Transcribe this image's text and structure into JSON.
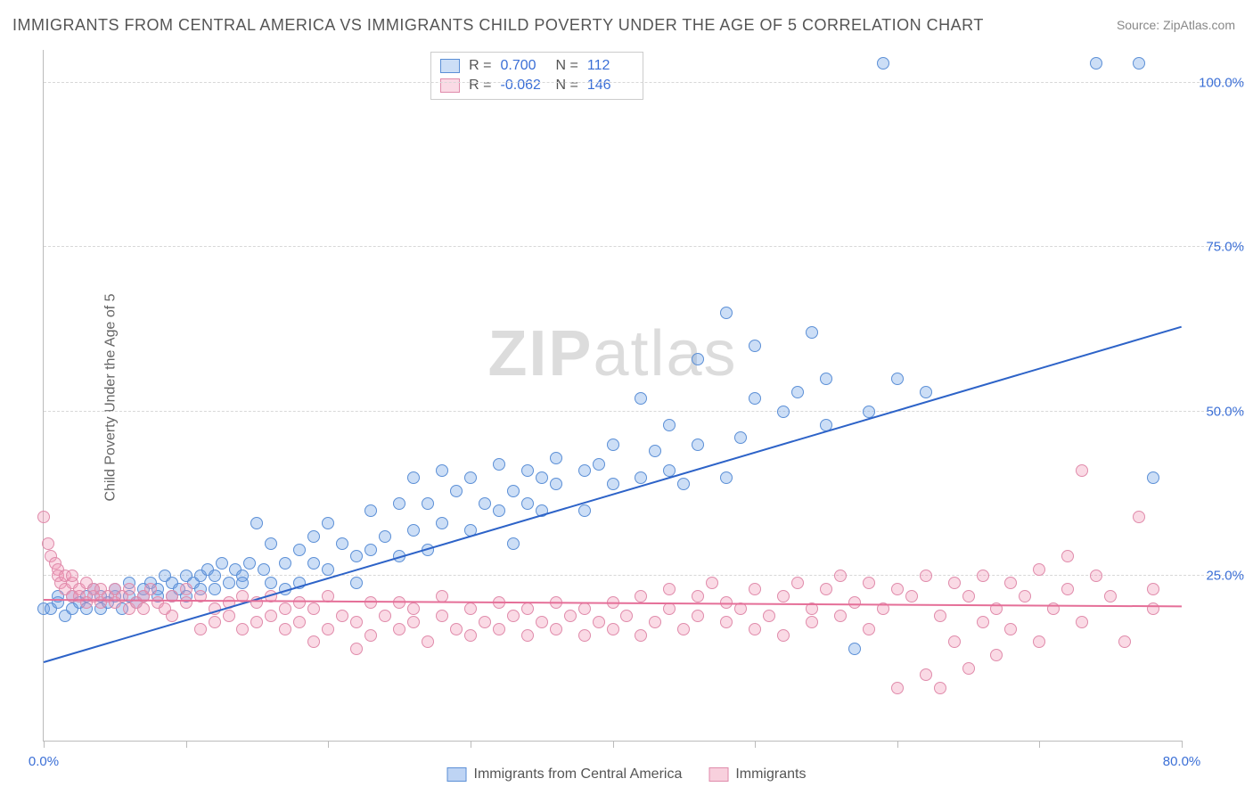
{
  "title": "IMMIGRANTS FROM CENTRAL AMERICA VS IMMIGRANTS CHILD POVERTY UNDER THE AGE OF 5 CORRELATION CHART",
  "source": "Source: ZipAtlas.com",
  "ylabel": "Child Poverty Under the Age of 5",
  "watermark_bold": "ZIP",
  "watermark_rest": "atlas",
  "chart": {
    "type": "scatter",
    "background_color": "#ffffff",
    "grid_color": "#d8d8d8",
    "axis_color": "#bbbbbb",
    "label_color": "#3b6fd6",
    "xlim": [
      0,
      80
    ],
    "ylim": [
      0,
      105
    ],
    "yticks": [
      25,
      50,
      75,
      100
    ],
    "ytick_labels": [
      "25.0%",
      "50.0%",
      "75.0%",
      "100.0%"
    ],
    "xticks": [
      0,
      10,
      20,
      30,
      40,
      50,
      60,
      70,
      80
    ],
    "xtick_labels": {
      "0": "0.0%",
      "80": "80.0%"
    },
    "marker_radius": 7,
    "marker_border_width": 1.5,
    "trend_line_width": 2
  },
  "series": [
    {
      "name": "Immigrants from Central America",
      "fill": "rgba(110,160,230,0.35)",
      "stroke": "#5b8fd6",
      "trend_color": "#2d63c8",
      "R": "0.700",
      "N": "112",
      "trend": {
        "x1": 0,
        "y1": 12,
        "x2": 80,
        "y2": 63
      },
      "points": [
        [
          0,
          20
        ],
        [
          0.5,
          20
        ],
        [
          1,
          21
        ],
        [
          1,
          22
        ],
        [
          1.5,
          19
        ],
        [
          2,
          20
        ],
        [
          2,
          22
        ],
        [
          2.5,
          21
        ],
        [
          3,
          20
        ],
        [
          3,
          22
        ],
        [
          3.5,
          23
        ],
        [
          4,
          20
        ],
        [
          4,
          22
        ],
        [
          4.5,
          21
        ],
        [
          5,
          22
        ],
        [
          5,
          23
        ],
        [
          5.5,
          20
        ],
        [
          6,
          22
        ],
        [
          6,
          24
        ],
        [
          6.5,
          21
        ],
        [
          7,
          23
        ],
        [
          7,
          22
        ],
        [
          7.5,
          24
        ],
        [
          8,
          22
        ],
        [
          8,
          23
        ],
        [
          8.5,
          25
        ],
        [
          9,
          22
        ],
        [
          9,
          24
        ],
        [
          9.5,
          23
        ],
        [
          10,
          22
        ],
        [
          10,
          25
        ],
        [
          10.5,
          24
        ],
        [
          11,
          23
        ],
        [
          11,
          25
        ],
        [
          11.5,
          26
        ],
        [
          12,
          23
        ],
        [
          12,
          25
        ],
        [
          12.5,
          27
        ],
        [
          13,
          24
        ],
        [
          13.5,
          26
        ],
        [
          14,
          25
        ],
        [
          14,
          24
        ],
        [
          14.5,
          27
        ],
        [
          15,
          33
        ],
        [
          15.5,
          26
        ],
        [
          16,
          24
        ],
        [
          16,
          30
        ],
        [
          17,
          23
        ],
        [
          17,
          27
        ],
        [
          18,
          29
        ],
        [
          18,
          24
        ],
        [
          19,
          31
        ],
        [
          19,
          27
        ],
        [
          20,
          26
        ],
        [
          20,
          33
        ],
        [
          21,
          30
        ],
        [
          22,
          28
        ],
        [
          22,
          24
        ],
        [
          23,
          35
        ],
        [
          23,
          29
        ],
        [
          24,
          31
        ],
        [
          25,
          36
        ],
        [
          25,
          28
        ],
        [
          26,
          40
        ],
        [
          26,
          32
        ],
        [
          27,
          29
        ],
        [
          27,
          36
        ],
        [
          28,
          33
        ],
        [
          28,
          41
        ],
        [
          29,
          38
        ],
        [
          30,
          32
        ],
        [
          30,
          40
        ],
        [
          31,
          36
        ],
        [
          32,
          35
        ],
        [
          32,
          42
        ],
        [
          33,
          30
        ],
        [
          33,
          38
        ],
        [
          34,
          41
        ],
        [
          34,
          36
        ],
        [
          35,
          40
        ],
        [
          35,
          35
        ],
        [
          36,
          39
        ],
        [
          36,
          43
        ],
        [
          38,
          35
        ],
        [
          38,
          41
        ],
        [
          39,
          42
        ],
        [
          40,
          45
        ],
        [
          40,
          39
        ],
        [
          42,
          40
        ],
        [
          42,
          52
        ],
        [
          43,
          44
        ],
        [
          44,
          41
        ],
        [
          44,
          48
        ],
        [
          45,
          39
        ],
        [
          46,
          58
        ],
        [
          46,
          45
        ],
        [
          48,
          65
        ],
        [
          48,
          40
        ],
        [
          49,
          46
        ],
        [
          50,
          60
        ],
        [
          50,
          52
        ],
        [
          52,
          50
        ],
        [
          53,
          53
        ],
        [
          54,
          62
        ],
        [
          55,
          48
        ],
        [
          55,
          55
        ],
        [
          57,
          14
        ],
        [
          58,
          50
        ],
        [
          59,
          103
        ],
        [
          60,
          55
        ],
        [
          62,
          53
        ],
        [
          74,
          103
        ],
        [
          77,
          103
        ],
        [
          78,
          40
        ]
      ]
    },
    {
      "name": "Immigrants",
      "fill": "rgba(240,150,180,0.35)",
      "stroke": "#e08bab",
      "trend_color": "#e56f98",
      "R": "-0.062",
      "N": "146",
      "trend": {
        "x1": 0,
        "y1": 21.5,
        "x2": 80,
        "y2": 20.5
      },
      "points": [
        [
          0,
          34
        ],
        [
          0.3,
          30
        ],
        [
          0.5,
          28
        ],
        [
          0.8,
          27
        ],
        [
          1,
          26
        ],
        [
          1,
          25
        ],
        [
          1.2,
          24
        ],
        [
          1.5,
          25
        ],
        [
          1.5,
          23
        ],
        [
          2,
          24
        ],
        [
          2,
          22
        ],
        [
          2,
          25
        ],
        [
          2.5,
          23
        ],
        [
          2.5,
          22
        ],
        [
          3,
          24
        ],
        [
          3,
          21
        ],
        [
          3.5,
          23
        ],
        [
          3.5,
          22
        ],
        [
          4,
          23
        ],
        [
          4,
          21
        ],
        [
          4.5,
          22
        ],
        [
          5,
          23
        ],
        [
          5,
          21
        ],
        [
          5.5,
          22
        ],
        [
          6,
          20
        ],
        [
          6,
          23
        ],
        [
          6.5,
          21
        ],
        [
          7,
          22
        ],
        [
          7,
          20
        ],
        [
          7.5,
          23
        ],
        [
          8,
          21
        ],
        [
          8.5,
          20
        ],
        [
          9,
          22
        ],
        [
          9,
          19
        ],
        [
          10,
          21
        ],
        [
          10,
          23
        ],
        [
          11,
          17
        ],
        [
          11,
          22
        ],
        [
          12,
          20
        ],
        [
          12,
          18
        ],
        [
          13,
          21
        ],
        [
          13,
          19
        ],
        [
          14,
          22
        ],
        [
          14,
          17
        ],
        [
          15,
          18
        ],
        [
          15,
          21
        ],
        [
          16,
          19
        ],
        [
          16,
          22
        ],
        [
          17,
          20
        ],
        [
          17,
          17
        ],
        [
          18,
          21
        ],
        [
          18,
          18
        ],
        [
          19,
          15
        ],
        [
          19,
          20
        ],
        [
          20,
          22
        ],
        [
          20,
          17
        ],
        [
          21,
          19
        ],
        [
          22,
          18
        ],
        [
          22,
          14
        ],
        [
          23,
          21
        ],
        [
          23,
          16
        ],
        [
          24,
          19
        ],
        [
          25,
          17
        ],
        [
          25,
          21
        ],
        [
          26,
          18
        ],
        [
          26,
          20
        ],
        [
          27,
          15
        ],
        [
          28,
          19
        ],
        [
          28,
          22
        ],
        [
          29,
          17
        ],
        [
          30,
          20
        ],
        [
          30,
          16
        ],
        [
          31,
          18
        ],
        [
          32,
          21
        ],
        [
          32,
          17
        ],
        [
          33,
          19
        ],
        [
          34,
          16
        ],
        [
          34,
          20
        ],
        [
          35,
          18
        ],
        [
          36,
          17
        ],
        [
          36,
          21
        ],
        [
          37,
          19
        ],
        [
          38,
          20
        ],
        [
          38,
          16
        ],
        [
          39,
          18
        ],
        [
          40,
          21
        ],
        [
          40,
          17
        ],
        [
          41,
          19
        ],
        [
          42,
          22
        ],
        [
          42,
          16
        ],
        [
          43,
          18
        ],
        [
          44,
          20
        ],
        [
          44,
          23
        ],
        [
          45,
          17
        ],
        [
          46,
          19
        ],
        [
          46,
          22
        ],
        [
          47,
          24
        ],
        [
          48,
          18
        ],
        [
          48,
          21
        ],
        [
          49,
          20
        ],
        [
          50,
          23
        ],
        [
          50,
          17
        ],
        [
          51,
          19
        ],
        [
          52,
          22
        ],
        [
          52,
          16
        ],
        [
          53,
          24
        ],
        [
          54,
          20
        ],
        [
          54,
          18
        ],
        [
          55,
          23
        ],
        [
          56,
          19
        ],
        [
          56,
          25
        ],
        [
          57,
          21
        ],
        [
          58,
          24
        ],
        [
          58,
          17
        ],
        [
          59,
          20
        ],
        [
          60,
          23
        ],
        [
          60,
          8
        ],
        [
          61,
          22
        ],
        [
          62,
          10
        ],
        [
          62,
          25
        ],
        [
          63,
          19
        ],
        [
          63,
          8
        ],
        [
          64,
          24
        ],
        [
          64,
          15
        ],
        [
          65,
          22
        ],
        [
          65,
          11
        ],
        [
          66,
          18
        ],
        [
          66,
          25
        ],
        [
          67,
          20
        ],
        [
          67,
          13
        ],
        [
          68,
          24
        ],
        [
          68,
          17
        ],
        [
          69,
          22
        ],
        [
          70,
          26
        ],
        [
          70,
          15
        ],
        [
          71,
          20
        ],
        [
          72,
          28
        ],
        [
          72,
          23
        ],
        [
          73,
          41
        ],
        [
          73,
          18
        ],
        [
          74,
          25
        ],
        [
          75,
          22
        ],
        [
          76,
          15
        ],
        [
          77,
          34
        ],
        [
          78,
          23
        ],
        [
          78,
          20
        ]
      ]
    }
  ],
  "bottom_legend": [
    {
      "label": "Immigrants from Central America",
      "fill": "rgba(110,160,230,0.45)",
      "stroke": "#5b8fd6"
    },
    {
      "label": "Immigrants",
      "fill": "rgba(240,150,180,0.45)",
      "stroke": "#e08bab"
    }
  ]
}
